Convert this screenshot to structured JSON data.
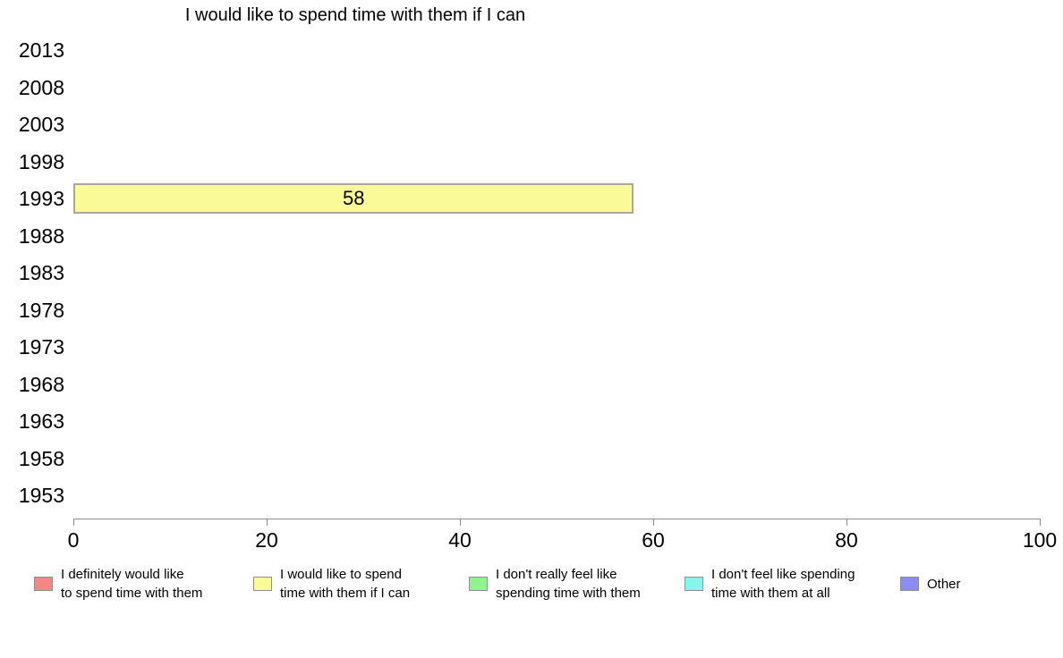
{
  "chart_data": {
    "type": "bar",
    "orientation": "horizontal",
    "title": "I would like to spend time with them if I can",
    "categories": [
      "2013",
      "2008",
      "2003",
      "1998",
      "1993",
      "1988",
      "1983",
      "1978",
      "1973",
      "1968",
      "1963",
      "1958",
      "1953"
    ],
    "values": [
      null,
      null,
      null,
      null,
      58,
      null,
      null,
      null,
      null,
      null,
      null,
      null,
      null
    ],
    "xlabel": "",
    "ylabel": "",
    "xlim": [
      0,
      100
    ],
    "xticks": [
      0,
      20,
      40,
      60,
      80,
      100
    ],
    "grid": false,
    "bar_color": "#fafa96",
    "bar_border_color": "#a9a996",
    "axis_color": "#8c8c8c",
    "legend_position": "bottom"
  },
  "legend": {
    "items": [
      {
        "label_lines": [
          "I definitely would like",
          "to spend time with them"
        ],
        "color": "#f58787"
      },
      {
        "label_lines": [
          "I would like to spend",
          "time with them if I can"
        ],
        "color": "#fafa96"
      },
      {
        "label_lines": [
          "I don't really feel like",
          "spending time with them"
        ],
        "color": "#8cf58c"
      },
      {
        "label_lines": [
          "I don't feel like spending",
          "time with them at all"
        ],
        "color": "#87f5ee"
      },
      {
        "label_lines": [
          "Other"
        ],
        "color": "#8c8cf5"
      }
    ]
  }
}
